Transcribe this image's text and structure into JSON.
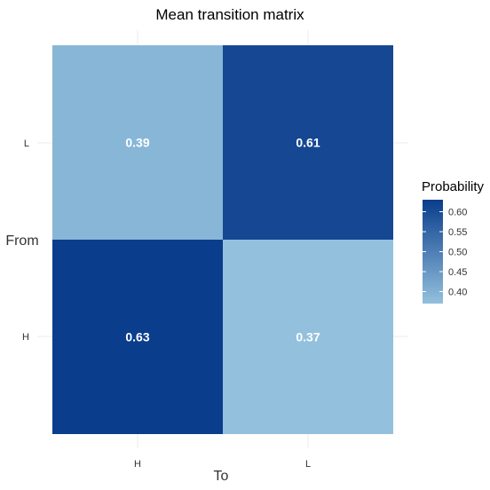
{
  "chart_data": {
    "type": "heatmap",
    "title": "Mean transition matrix",
    "xlabel": "To",
    "ylabel": "From",
    "x_categories": [
      "H",
      "L"
    ],
    "y_categories": [
      "H",
      "L"
    ],
    "cells": [
      {
        "from": "L",
        "to": "H",
        "value": 0.39,
        "label": "0.39"
      },
      {
        "from": "L",
        "to": "L",
        "value": 0.61,
        "label": "0.61"
      },
      {
        "from": "H",
        "to": "H",
        "value": 0.63,
        "label": "0.63"
      },
      {
        "from": "H",
        "to": "L",
        "value": 0.37,
        "label": "0.37"
      }
    ],
    "legend": {
      "title": "Probability",
      "ticks": [
        "0.60",
        "0.55",
        "0.50",
        "0.45",
        "0.40"
      ],
      "tick_values": [
        0.6,
        0.55,
        0.5,
        0.45,
        0.4
      ],
      "range": [
        0.37,
        0.63
      ],
      "placement": "right"
    },
    "color_low": "#93c0dd",
    "color_high": "#0a3d8c"
  }
}
